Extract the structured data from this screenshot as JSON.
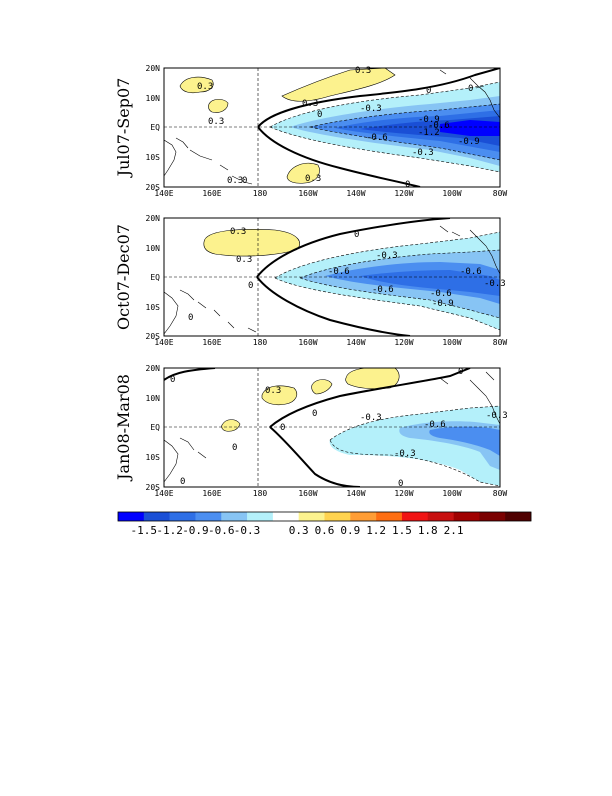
{
  "chart_data": [
    {
      "type": "heatmap",
      "title": "Jul07-Sep07",
      "ylabel": "Jul07-Sep07",
      "x_ticks": [
        "140E",
        "160E",
        "180",
        "160W",
        "140W",
        "120W",
        "100W",
        "80W"
      ],
      "y_ticks": [
        "20N",
        "10N",
        "EQ",
        "10S",
        "20S"
      ],
      "xlim": [
        140,
        280
      ],
      "ylim": [
        -20,
        20
      ],
      "contour_labels": [
        {
          "text": "0.3",
          "x": 157,
          "y": 8
        },
        {
          "text": "0.3",
          "x": 162,
          "y": 1
        },
        {
          "text": "0.3",
          "x": 190,
          "y": 5
        },
        {
          "text": "0.3",
          "x": 223,
          "y": 11
        },
        {
          "text": "-0.3",
          "x": 230,
          "y": 3
        },
        {
          "text": "0.3",
          "x": 192,
          "y": -11
        },
        {
          "text": "0",
          "x": 235,
          "y": 7
        },
        {
          "text": "0",
          "x": 214,
          "y": 2
        },
        {
          "text": "0",
          "x": 254,
          "y": 8
        },
        {
          "text": "0",
          "x": 237,
          "y": -12
        },
        {
          "text": "0",
          "x": 176,
          "y": -12
        },
        {
          "text": "0.3",
          "x": 176,
          "y": -11
        },
        {
          "text": "-0.6",
          "x": 238,
          "y": -2
        },
        {
          "text": "-0.9",
          "x": 250,
          "y": 2
        },
        {
          "text": "-1.2",
          "x": 250,
          "y": 0
        },
        {
          "text": "-0.9",
          "x": 264,
          "y": -3
        },
        {
          "text": "-0.3",
          "x": 246,
          "y": -5
        },
        {
          "text": "-0.6",
          "x": 251,
          "y": 1
        }
      ]
    },
    {
      "type": "heatmap",
      "title": "Oct07-Dec07",
      "ylabel": "Oct07-Dec07",
      "x_ticks": [
        "140E",
        "160E",
        "180",
        "160W",
        "140W",
        "120W",
        "100W",
        "80W"
      ],
      "y_ticks": [
        "20N",
        "10N",
        "EQ",
        "10S",
        "20S"
      ],
      "xlim": [
        140,
        280
      ],
      "ylim": [
        -20,
        20
      ],
      "contour_labels": [
        {
          "text": "0.3",
          "x": 172,
          "y": 9
        },
        {
          "text": "0.3",
          "x": 174,
          "y": 3
        },
        {
          "text": "0",
          "x": 205,
          "y": 7
        },
        {
          "text": "-0.3",
          "x": 230,
          "y": 6
        },
        {
          "text": "-0.6",
          "x": 204,
          "y": 1
        },
        {
          "text": "-0.6",
          "x": 237,
          "y": -2
        },
        {
          "text": "-0.6",
          "x": 265,
          "y": 1
        },
        {
          "text": "-0.3",
          "x": 273,
          "y": -2
        },
        {
          "text": "-0.6",
          "x": 252,
          "y": -5
        },
        {
          "text": "-0.9",
          "x": 253,
          "y": -8
        },
        {
          "text": "0",
          "x": 213,
          "y": -2
        },
        {
          "text": "0",
          "x": 260,
          "y": -17
        }
      ]
    },
    {
      "type": "heatmap",
      "title": "Jan08-Mar08",
      "ylabel": "Jan08-Mar08",
      "x_ticks": [
        "140E",
        "160E",
        "180",
        "160W",
        "140W",
        "120W",
        "100W",
        "80W"
      ],
      "y_ticks": [
        "20N",
        "10N",
        "EQ",
        "10S",
        "20S"
      ],
      "xlim": [
        140,
        280
      ],
      "ylim": [
        -20,
        20
      ],
      "contour_labels": [
        {
          "text": "0",
          "x": 148,
          "y": 16
        },
        {
          "text": "0.3",
          "x": 186,
          "y": 12
        },
        {
          "text": "0",
          "x": 161,
          "y": -11
        },
        {
          "text": "0",
          "x": 179,
          "y": 0
        },
        {
          "text": "0",
          "x": 207,
          "y": 5
        },
        {
          "text": "-0.3",
          "x": 225,
          "y": 4
        },
        {
          "text": "-0.6",
          "x": 262,
          "y": 1
        },
        {
          "text": "-0.3",
          "x": 273,
          "y": 5
        },
        {
          "text": "-0.3",
          "x": 246,
          "y": -9
        },
        {
          "text": "0",
          "x": 263,
          "y": 14
        },
        {
          "text": "0",
          "x": 241,
          "y": -19
        },
        {
          "text": "0",
          "x": 148,
          "y": -17
        }
      ]
    }
  ],
  "colorbar": {
    "tick_labels": [
      "-1.5",
      "-1.2",
      "-0.9",
      "-0.6",
      "-0.3",
      "0.3",
      "0.6",
      "0.9",
      "1.2",
      "1.5",
      "1.8",
      "2.1"
    ],
    "colors": [
      "#0000ff",
      "#1a4fd6",
      "#2e6fe6",
      "#4b8ef0",
      "#87c4f4",
      "#b4f0fa",
      "#ffffff",
      "#fcf28e",
      "#ffd34f",
      "#ff9d35",
      "#fe6e12",
      "#f01414",
      "#c81010",
      "#a00000",
      "#7a0000",
      "#4f0000"
    ]
  }
}
